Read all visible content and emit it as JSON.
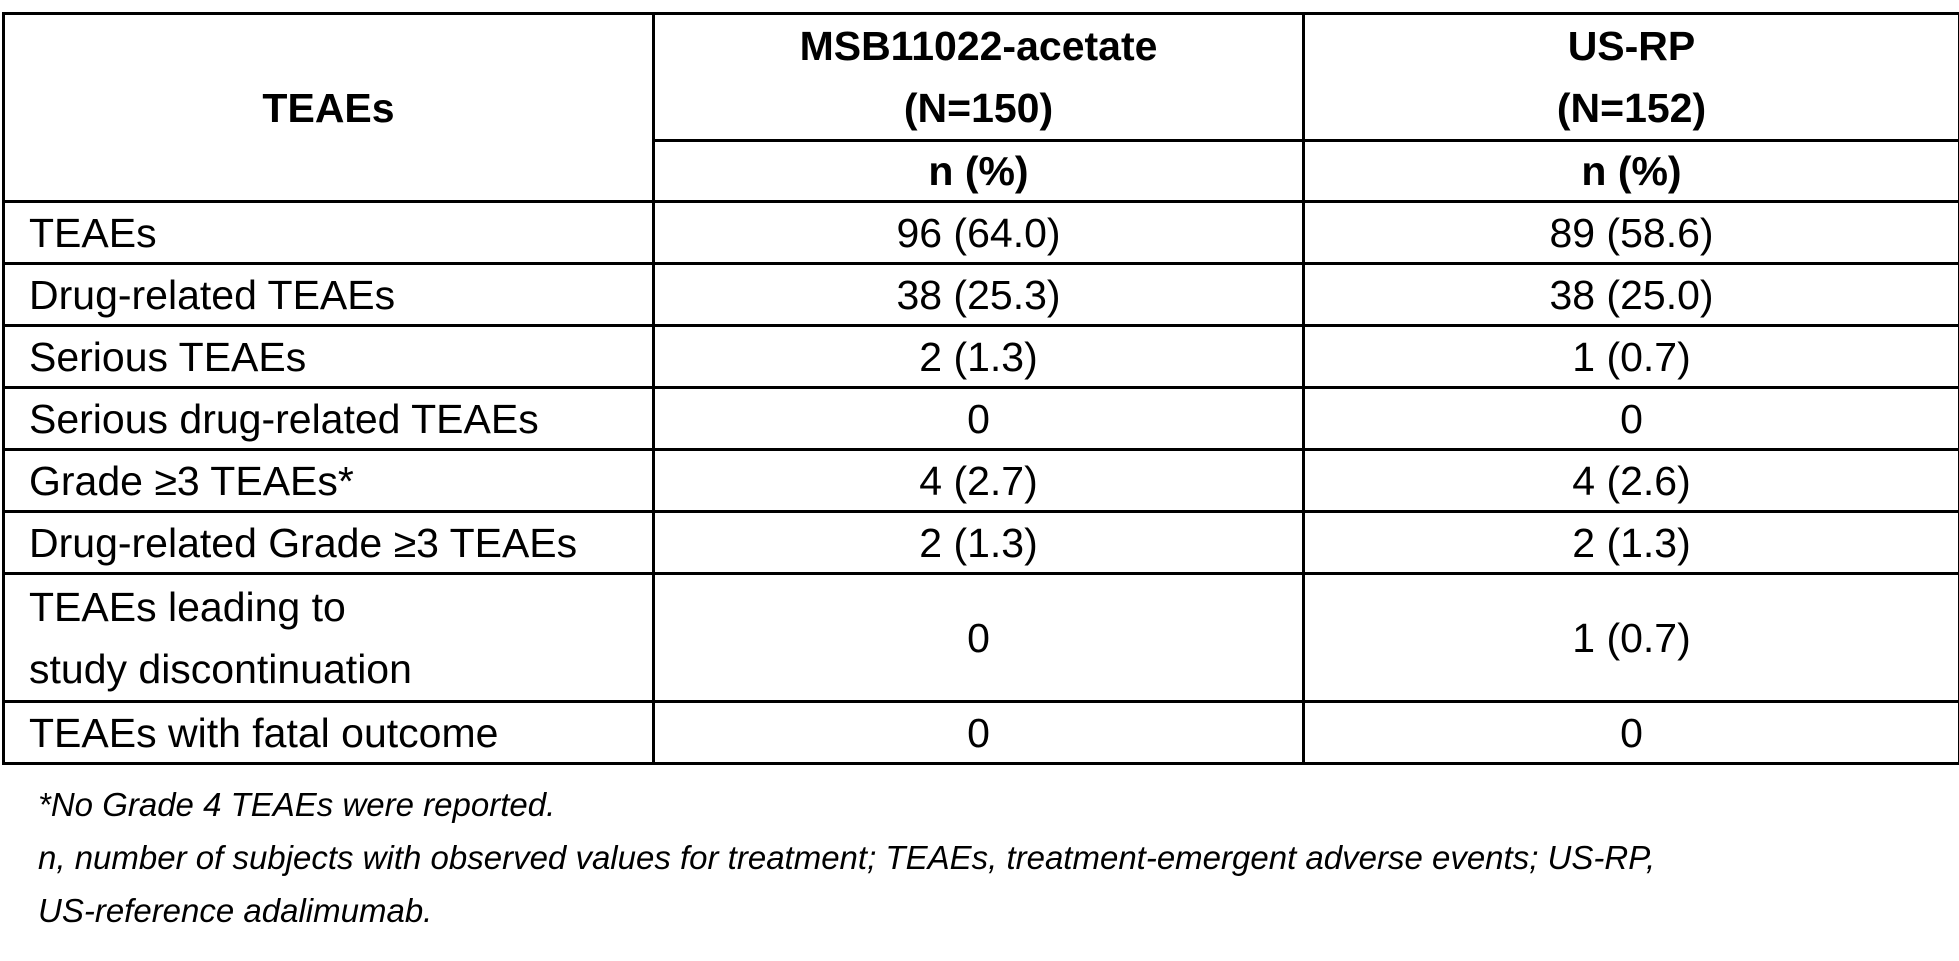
{
  "table": {
    "header": {
      "row_label": "TEAEs",
      "groups": [
        {
          "name": "MSB11022-acetate",
          "n": "(N=150)",
          "unit": "n (%)"
        },
        {
          "name": "US-RP",
          "n": "(N=152)",
          "unit": "n (%)"
        }
      ]
    },
    "rows": [
      {
        "label": "TEAEs",
        "values": [
          "96 (64.0)",
          "89 (58.6)"
        ]
      },
      {
        "label": "Drug-related TEAEs",
        "values": [
          "38 (25.3)",
          "38 (25.0)"
        ]
      },
      {
        "label": "Serious TEAEs",
        "values": [
          "2 (1.3)",
          "1 (0.7)"
        ]
      },
      {
        "label": "Serious drug-related TEAEs",
        "values": [
          "0",
          "0"
        ]
      },
      {
        "label": "Grade ≥3 TEAEs*",
        "values": [
          "4 (2.7)",
          "4 (2.6)"
        ]
      },
      {
        "label": "Drug-related Grade ≥3 TEAEs",
        "values": [
          "2 (1.3)",
          "2 (1.3)"
        ]
      },
      {
        "label_line1": "TEAEs leading to",
        "label_line2": "study discontinuation",
        "values": [
          "0",
          "1 (0.7)"
        ]
      },
      {
        "label": "TEAEs with fatal outcome",
        "values": [
          "0",
          "0"
        ]
      }
    ]
  },
  "footnotes": [
    "*No Grade 4 TEAEs were reported.",
    "n, number of subjects with observed values for treatment; TEAEs, treatment-emergent adverse events; US-RP,",
    "US-reference adalimumab."
  ]
}
